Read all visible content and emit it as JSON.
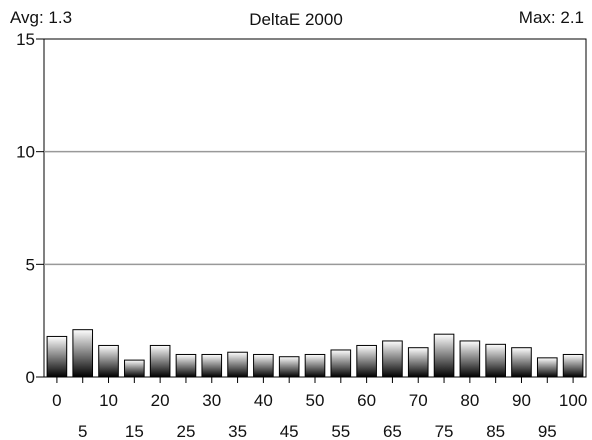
{
  "header": {
    "avg": "Avg: 1.3",
    "title": "DeltaE 2000",
    "max": "Max: 2.1"
  },
  "chart_data": {
    "type": "bar",
    "title": "DeltaE 2000",
    "xlabel": "",
    "ylabel": "",
    "ylim": [
      0,
      15
    ],
    "yticks": [
      0,
      5,
      10,
      15
    ],
    "grid": true,
    "categories": [
      "0",
      "5",
      "10",
      "15",
      "20",
      "25",
      "30",
      "35",
      "40",
      "45",
      "50",
      "55",
      "60",
      "65",
      "70",
      "75",
      "80",
      "85",
      "90",
      "95",
      "100"
    ],
    "values": [
      1.8,
      2.1,
      1.4,
      0.75,
      1.4,
      1.0,
      1.0,
      1.1,
      1.0,
      0.9,
      1.0,
      1.2,
      1.4,
      1.6,
      1.3,
      1.9,
      1.6,
      1.45,
      1.3,
      0.85,
      1.0
    ],
    "colors": {
      "bar_top": "#ffffff",
      "bar_bottom": "#000000",
      "grid": "#999999",
      "axis": "#000000"
    }
  }
}
